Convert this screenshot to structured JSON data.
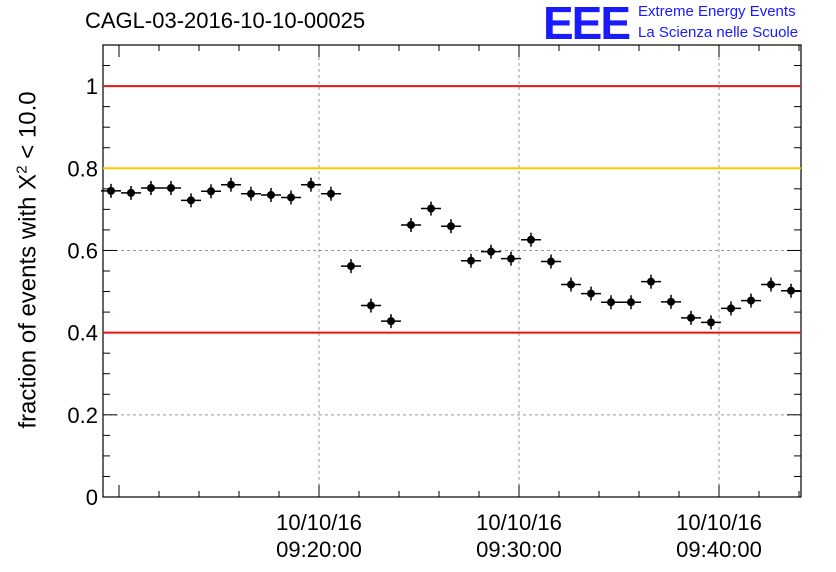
{
  "chart_data": {
    "type": "scatter",
    "title": "CAGL-03-2016-10-10-00025",
    "ylabel_prefix": "fraction of events with ",
    "ylabel_symbol": "X",
    "ylabel_sup": "2",
    "ylabel_suffix": " < 10.0",
    "ylim": [
      0,
      1.1
    ],
    "yticks": [
      {
        "value": 0,
        "label": "0"
      },
      {
        "value": 0.2,
        "label": "0.2"
      },
      {
        "value": 0.4,
        "label": "0.4"
      },
      {
        "value": 0.6,
        "label": "0.6"
      },
      {
        "value": 0.8,
        "label": "0.8"
      },
      {
        "value": 1.0,
        "label": "1"
      }
    ],
    "xlim_minutes": [
      9.2,
      44.1
    ],
    "xticks": [
      {
        "value": 20,
        "date": "10/10/16",
        "time": "09:20:00"
      },
      {
        "value": 30,
        "date": "10/10/16",
        "time": "09:30:00"
      },
      {
        "value": 40,
        "date": "10/10/16",
        "time": "09:40:00"
      }
    ],
    "grid": true,
    "reference_lines": [
      {
        "y": 1.0,
        "color": "#e8140c"
      },
      {
        "y": 0.8,
        "color": "#ffc800"
      },
      {
        "y": 0.4,
        "color": "#e8140c"
      }
    ],
    "marker_color": "#000000",
    "bin_width_minutes": 1.0,
    "points": [
      {
        "x": 9.6,
        "y": 0.745
      },
      {
        "x": 10.6,
        "y": 0.74
      },
      {
        "x": 11.6,
        "y": 0.752
      },
      {
        "x": 12.6,
        "y": 0.752
      },
      {
        "x": 13.6,
        "y": 0.722
      },
      {
        "x": 14.6,
        "y": 0.744
      },
      {
        "x": 15.6,
        "y": 0.76
      },
      {
        "x": 16.6,
        "y": 0.738
      },
      {
        "x": 17.6,
        "y": 0.735
      },
      {
        "x": 18.6,
        "y": 0.729
      },
      {
        "x": 19.6,
        "y": 0.76
      },
      {
        "x": 20.6,
        "y": 0.738
      },
      {
        "x": 21.6,
        "y": 0.562
      },
      {
        "x": 22.6,
        "y": 0.466
      },
      {
        "x": 23.6,
        "y": 0.428
      },
      {
        "x": 24.6,
        "y": 0.662
      },
      {
        "x": 25.6,
        "y": 0.702
      },
      {
        "x": 26.6,
        "y": 0.659
      },
      {
        "x": 27.6,
        "y": 0.575
      },
      {
        "x": 28.6,
        "y": 0.597
      },
      {
        "x": 29.6,
        "y": 0.58
      },
      {
        "x": 30.6,
        "y": 0.626
      },
      {
        "x": 31.6,
        "y": 0.573
      },
      {
        "x": 32.6,
        "y": 0.517
      },
      {
        "x": 33.6,
        "y": 0.495
      },
      {
        "x": 34.6,
        "y": 0.474
      },
      {
        "x": 35.6,
        "y": 0.474
      },
      {
        "x": 36.6,
        "y": 0.524
      },
      {
        "x": 37.6,
        "y": 0.475
      },
      {
        "x": 38.6,
        "y": 0.436
      },
      {
        "x": 39.6,
        "y": 0.425
      },
      {
        "x": 40.6,
        "y": 0.459
      },
      {
        "x": 41.6,
        "y": 0.478
      },
      {
        "x": 42.6,
        "y": 0.517
      },
      {
        "x": 43.6,
        "y": 0.502
      }
    ]
  },
  "logo": {
    "mark": "EEE",
    "line1": "Extreme Energy Events",
    "line2": "La Scienza nelle Scuole"
  }
}
